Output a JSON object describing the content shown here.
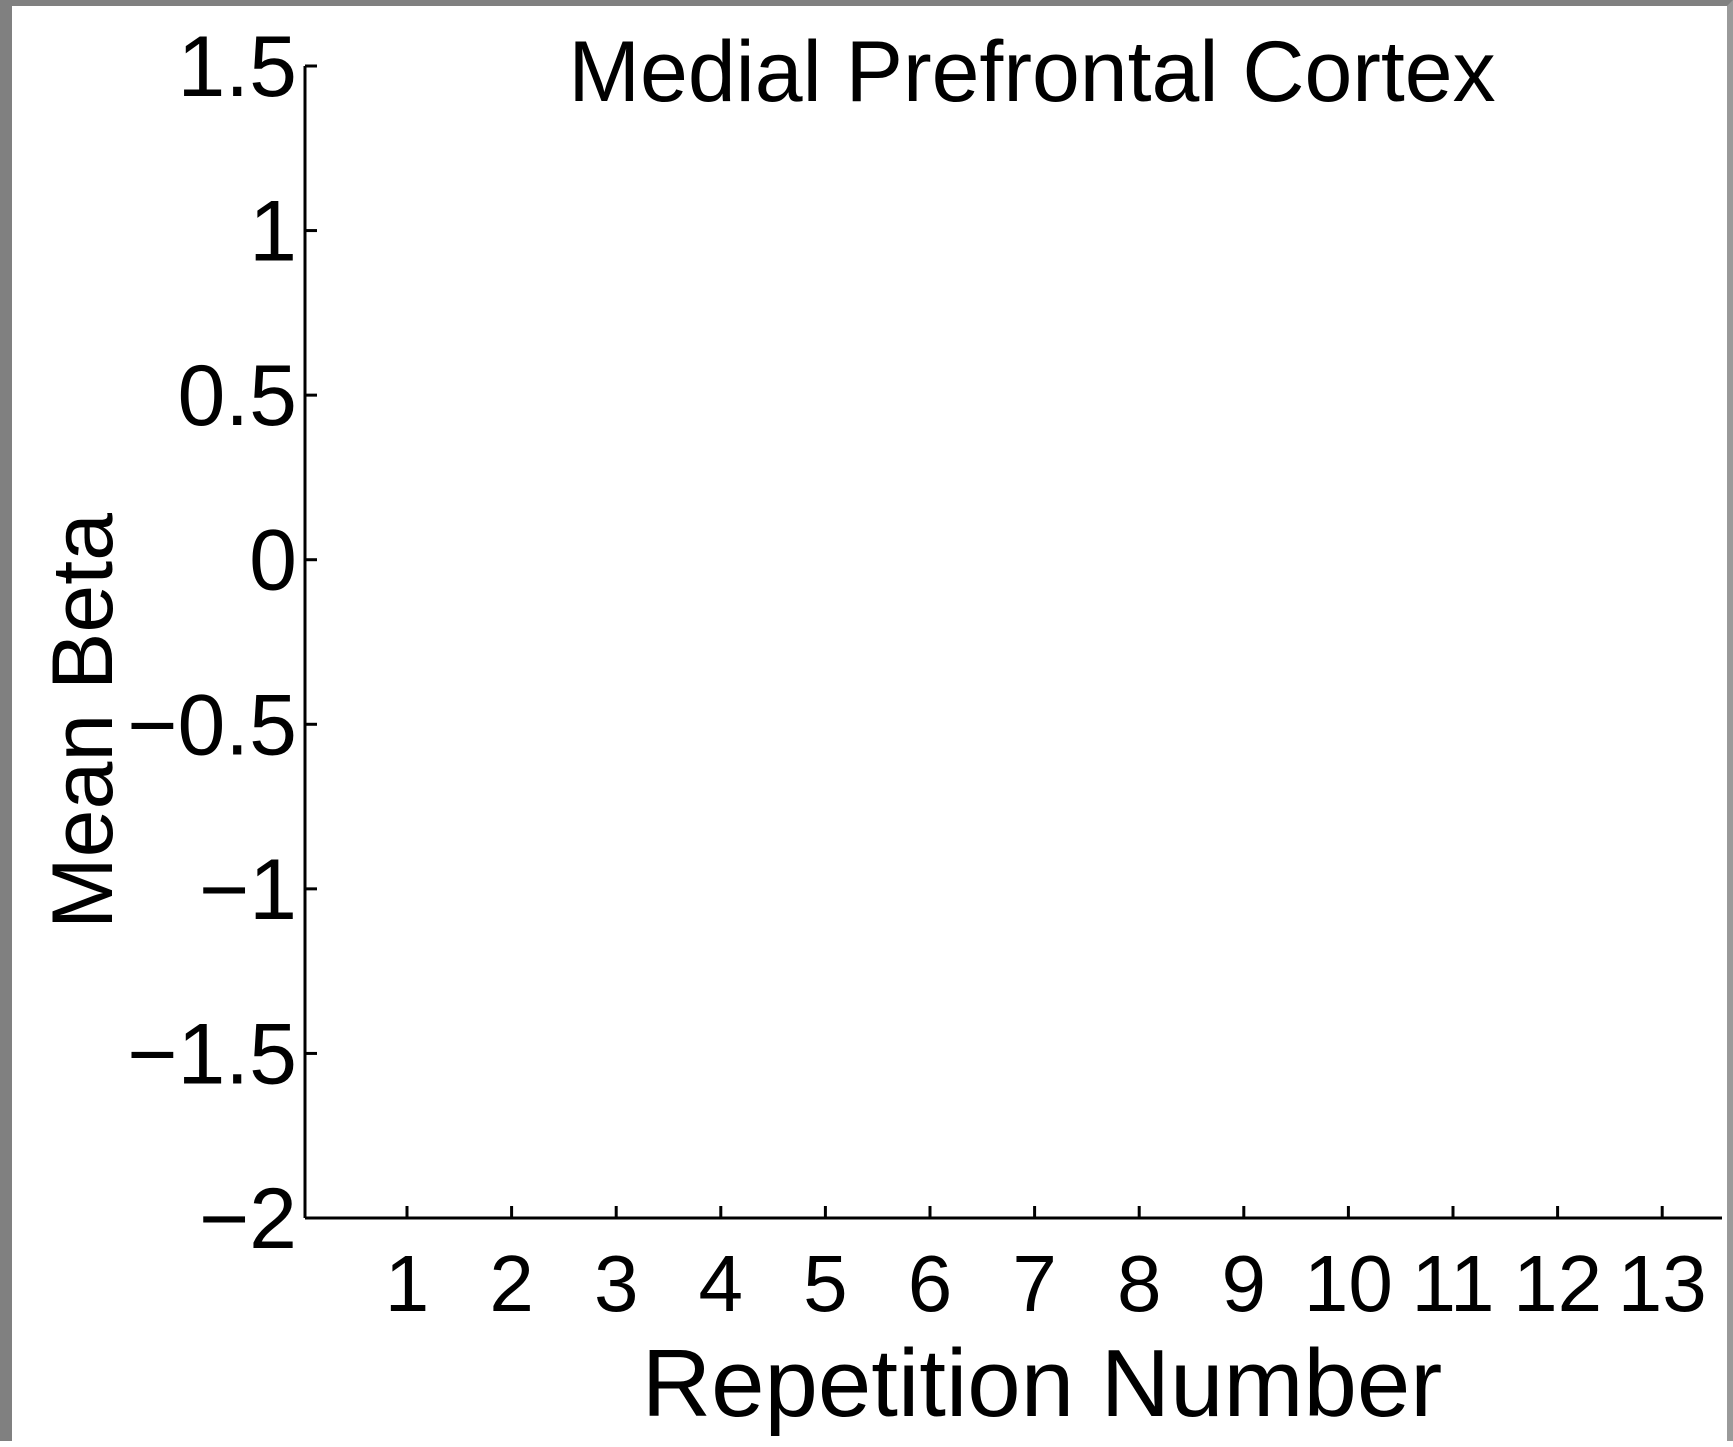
{
  "chart_data": {
    "type": "line",
    "title": "Medial Prefrontal Cortex",
    "xlabel": "Repetition Number",
    "ylabel": "Mean Beta",
    "x": [
      1,
      2,
      3,
      4,
      5,
      6,
      7,
      8,
      9,
      10,
      11,
      12,
      13
    ],
    "xticks": [
      "1",
      "2",
      "3",
      "4",
      "5",
      "6",
      "7",
      "8",
      "9",
      "10",
      "11",
      "12",
      "13"
    ],
    "yticks": [
      {
        "value": 1.5,
        "label": "1.5"
      },
      {
        "value": 1,
        "label": "1"
      },
      {
        "value": 0.5,
        "label": "0.5"
      },
      {
        "value": 0,
        "label": "0"
      },
      {
        "value": -0.5,
        "label": "−0.5"
      },
      {
        "value": -1,
        "label": "−1"
      },
      {
        "value": -1.5,
        "label": "−1.5"
      },
      {
        "value": -2,
        "label": "−2"
      }
    ],
    "xlim": [
      0,
      13.5
    ],
    "ylim": [
      -2,
      1.5
    ],
    "grid": false,
    "series": []
  }
}
